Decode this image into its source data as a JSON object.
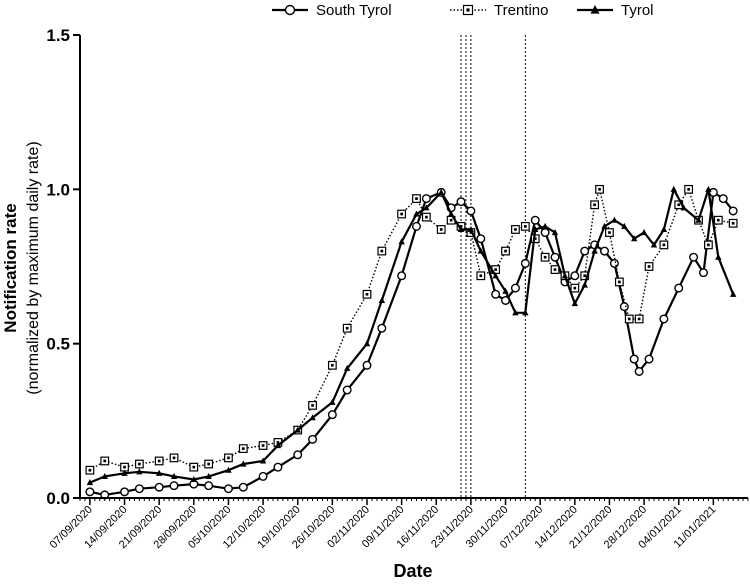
{
  "chart_data": {
    "type": "line",
    "xlabel": "Date",
    "ylabel": "Notification rate",
    "ylabel_sub": "(normalized by maximum daily rate)",
    "ylim": [
      0,
      1.5
    ],
    "y_ticks": [
      0.0,
      0.5,
      1.0,
      1.5
    ],
    "y_tick_labels": [
      "0.0",
      "0.5",
      "1.0",
      "1.5"
    ],
    "x_start": "2020-09-05",
    "x_end": "2021-01-18",
    "x_ticks": [
      "2020-09-07",
      "2020-09-14",
      "2020-09-21",
      "2020-09-28",
      "2020-10-05",
      "2020-10-12",
      "2020-10-19",
      "2020-10-26",
      "2020-11-02",
      "2020-11-09",
      "2020-11-16",
      "2020-11-23",
      "2020-11-30",
      "2020-12-07",
      "2020-12-14",
      "2020-12-21",
      "2020-12-28",
      "2021-01-04",
      "2021-01-11"
    ],
    "x_tick_labels": [
      "07/09/2020",
      "14/09/2020",
      "21/09/2020",
      "28/09/2020",
      "05/10/2020",
      "12/10/2020",
      "19/10/2020",
      "26/10/2020",
      "02/11/2020",
      "09/11/2020",
      "16/11/2020",
      "23/11/2020",
      "30/11/2020",
      "07/12/2020",
      "14/12/2020",
      "21/12/2020",
      "28/12/2020",
      "04/01/2021",
      "11/01/2021"
    ],
    "vertical_lines": [
      "2020-11-21",
      "2020-11-22",
      "2020-11-23",
      "2020-12-04"
    ],
    "legend_position": "top",
    "series": [
      {
        "name": "South Tyrol",
        "marker": "circle-open",
        "line_style": "solid",
        "points": [
          [
            "2020-09-07",
            0.02
          ],
          [
            "2020-09-10",
            0.01
          ],
          [
            "2020-09-14",
            0.02
          ],
          [
            "2020-09-17",
            0.03
          ],
          [
            "2020-09-21",
            0.035
          ],
          [
            "2020-09-24",
            0.04
          ],
          [
            "2020-09-28",
            0.045
          ],
          [
            "2020-10-01",
            0.04
          ],
          [
            "2020-10-05",
            0.03
          ],
          [
            "2020-10-08",
            0.035
          ],
          [
            "2020-10-12",
            0.07
          ],
          [
            "2020-10-15",
            0.1
          ],
          [
            "2020-10-19",
            0.14
          ],
          [
            "2020-10-22",
            0.19
          ],
          [
            "2020-10-26",
            0.27
          ],
          [
            "2020-10-29",
            0.35
          ],
          [
            "2020-11-02",
            0.43
          ],
          [
            "2020-11-05",
            0.55
          ],
          [
            "2020-11-09",
            0.72
          ],
          [
            "2020-11-12",
            0.88
          ],
          [
            "2020-11-14",
            0.97
          ],
          [
            "2020-11-17",
            0.99
          ],
          [
            "2020-11-19",
            0.94
          ],
          [
            "2020-11-21",
            0.96
          ],
          [
            "2020-11-23",
            0.93
          ],
          [
            "2020-11-25",
            0.84
          ],
          [
            "2020-11-28",
            0.66
          ],
          [
            "2020-11-30",
            0.64
          ],
          [
            "2020-12-02",
            0.68
          ],
          [
            "2020-12-04",
            0.76
          ],
          [
            "2020-12-06",
            0.9
          ],
          [
            "2020-12-08",
            0.86
          ],
          [
            "2020-12-10",
            0.78
          ],
          [
            "2020-12-12",
            0.7
          ],
          [
            "2020-12-14",
            0.72
          ],
          [
            "2020-12-16",
            0.8
          ],
          [
            "2020-12-18",
            0.82
          ],
          [
            "2020-12-20",
            0.8
          ],
          [
            "2020-12-22",
            0.76
          ],
          [
            "2020-12-24",
            0.62
          ],
          [
            "2020-12-26",
            0.45
          ],
          [
            "2020-12-27",
            0.41
          ],
          [
            "2020-12-29",
            0.45
          ],
          [
            "2021-01-01",
            0.58
          ],
          [
            "2021-01-04",
            0.68
          ],
          [
            "2021-01-07",
            0.78
          ],
          [
            "2021-01-09",
            0.73
          ],
          [
            "2021-01-11",
            0.99
          ],
          [
            "2021-01-13",
            0.97
          ],
          [
            "2021-01-15",
            0.93
          ]
        ]
      },
      {
        "name": "Trentino",
        "marker": "square-open",
        "line_style": "dotted",
        "points": [
          [
            "2020-09-07",
            0.09
          ],
          [
            "2020-09-10",
            0.12
          ],
          [
            "2020-09-14",
            0.1
          ],
          [
            "2020-09-17",
            0.11
          ],
          [
            "2020-09-21",
            0.12
          ],
          [
            "2020-09-24",
            0.13
          ],
          [
            "2020-09-28",
            0.1
          ],
          [
            "2020-10-01",
            0.11
          ],
          [
            "2020-10-05",
            0.13
          ],
          [
            "2020-10-08",
            0.16
          ],
          [
            "2020-10-12",
            0.17
          ],
          [
            "2020-10-15",
            0.18
          ],
          [
            "2020-10-19",
            0.22
          ],
          [
            "2020-10-22",
            0.3
          ],
          [
            "2020-10-26",
            0.43
          ],
          [
            "2020-10-29",
            0.55
          ],
          [
            "2020-11-02",
            0.66
          ],
          [
            "2020-11-05",
            0.8
          ],
          [
            "2020-11-09",
            0.92
          ],
          [
            "2020-11-12",
            0.97
          ],
          [
            "2020-11-14",
            0.91
          ],
          [
            "2020-11-17",
            0.87
          ],
          [
            "2020-11-19",
            0.9
          ],
          [
            "2020-11-21",
            0.88
          ],
          [
            "2020-11-23",
            0.86
          ],
          [
            "2020-11-25",
            0.72
          ],
          [
            "2020-11-28",
            0.74
          ],
          [
            "2020-11-30",
            0.8
          ],
          [
            "2020-12-02",
            0.87
          ],
          [
            "2020-12-04",
            0.88
          ],
          [
            "2020-12-06",
            0.84
          ],
          [
            "2020-12-08",
            0.78
          ],
          [
            "2020-12-10",
            0.74
          ],
          [
            "2020-12-12",
            0.72
          ],
          [
            "2020-12-14",
            0.68
          ],
          [
            "2020-12-16",
            0.72
          ],
          [
            "2020-12-18",
            0.95
          ],
          [
            "2020-12-19",
            1.0
          ],
          [
            "2020-12-21",
            0.86
          ],
          [
            "2020-12-23",
            0.7
          ],
          [
            "2020-12-25",
            0.58
          ],
          [
            "2020-12-27",
            0.58
          ],
          [
            "2020-12-29",
            0.75
          ],
          [
            "2021-01-01",
            0.82
          ],
          [
            "2021-01-04",
            0.95
          ],
          [
            "2021-01-06",
            1.0
          ],
          [
            "2021-01-08",
            0.9
          ],
          [
            "2021-01-10",
            0.82
          ],
          [
            "2021-01-12",
            0.9
          ],
          [
            "2021-01-15",
            0.89
          ]
        ]
      },
      {
        "name": "Tyrol",
        "marker": "triangle-filled",
        "line_style": "solid",
        "points": [
          [
            "2020-09-07",
            0.05
          ],
          [
            "2020-09-10",
            0.07
          ],
          [
            "2020-09-14",
            0.08
          ],
          [
            "2020-09-17",
            0.085
          ],
          [
            "2020-09-21",
            0.08
          ],
          [
            "2020-09-24",
            0.07
          ],
          [
            "2020-09-28",
            0.06
          ],
          [
            "2020-10-01",
            0.07
          ],
          [
            "2020-10-05",
            0.09
          ],
          [
            "2020-10-08",
            0.11
          ],
          [
            "2020-10-12",
            0.12
          ],
          [
            "2020-10-15",
            0.17
          ],
          [
            "2020-10-19",
            0.22
          ],
          [
            "2020-10-22",
            0.26
          ],
          [
            "2020-10-26",
            0.31
          ],
          [
            "2020-10-29",
            0.42
          ],
          [
            "2020-11-02",
            0.5
          ],
          [
            "2020-11-05",
            0.64
          ],
          [
            "2020-11-09",
            0.83
          ],
          [
            "2020-11-12",
            0.92
          ],
          [
            "2020-11-14",
            0.94
          ],
          [
            "2020-11-17",
            0.99
          ],
          [
            "2020-11-19",
            0.92
          ],
          [
            "2020-11-21",
            0.87
          ],
          [
            "2020-11-23",
            0.87
          ],
          [
            "2020-11-25",
            0.8
          ],
          [
            "2020-11-28",
            0.72
          ],
          [
            "2020-11-30",
            0.67
          ],
          [
            "2020-12-02",
            0.6
          ],
          [
            "2020-12-04",
            0.6
          ],
          [
            "2020-12-06",
            0.87
          ],
          [
            "2020-12-08",
            0.88
          ],
          [
            "2020-12-10",
            0.86
          ],
          [
            "2020-12-12",
            0.72
          ],
          [
            "2020-12-14",
            0.63
          ],
          [
            "2020-12-16",
            0.69
          ],
          [
            "2020-12-18",
            0.8
          ],
          [
            "2020-12-20",
            0.88
          ],
          [
            "2020-12-22",
            0.9
          ],
          [
            "2020-12-24",
            0.88
          ],
          [
            "2020-12-26",
            0.84
          ],
          [
            "2020-12-28",
            0.86
          ],
          [
            "2020-12-30",
            0.82
          ],
          [
            "2021-01-01",
            0.87
          ],
          [
            "2021-01-03",
            1.0
          ],
          [
            "2021-01-05",
            0.94
          ],
          [
            "2021-01-08",
            0.9
          ],
          [
            "2021-01-10",
            1.0
          ],
          [
            "2021-01-12",
            0.78
          ],
          [
            "2021-01-15",
            0.66
          ]
        ]
      }
    ]
  }
}
